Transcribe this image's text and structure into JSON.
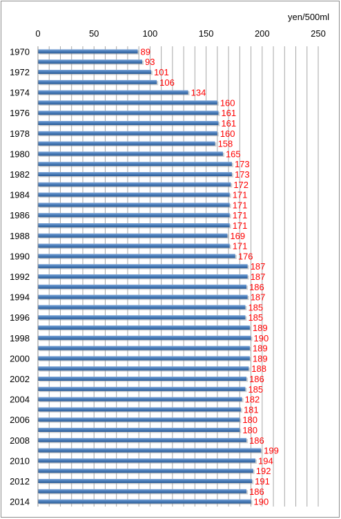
{
  "chart_data": {
    "type": "bar",
    "orientation": "horizontal",
    "unit_label": "yen/500ml",
    "xlim": [
      0,
      250
    ],
    "xticks": [
      "0",
      "50",
      "100",
      "150",
      "200",
      "250"
    ],
    "grid": true,
    "categories": [
      "1970",
      "1971",
      "1972",
      "1973",
      "1974",
      "1975",
      "1976",
      "1977",
      "1978",
      "1979",
      "1980",
      "1981",
      "1982",
      "1983",
      "1984",
      "1985",
      "1986",
      "1987",
      "1988",
      "1989",
      "1990",
      "1991",
      "1992",
      "1993",
      "1994",
      "1995",
      "1996",
      "1997",
      "1998",
      "1999",
      "2000",
      "2001",
      "2002",
      "2003",
      "2004",
      "2005",
      "2006",
      "2007",
      "2008",
      "2009",
      "2010",
      "2011",
      "2012",
      "2013",
      "2014"
    ],
    "category_labels_shown": [
      "1970",
      "1972",
      "1974",
      "1976",
      "1978",
      "1980",
      "1982",
      "1984",
      "1986",
      "1988",
      "1990",
      "1992",
      "1994",
      "1996",
      "1998",
      "2000",
      "2002",
      "2004",
      "2006",
      "2008",
      "2010",
      "2012",
      "2014"
    ],
    "values": [
      89,
      93,
      101,
      106,
      134,
      160,
      161,
      161,
      160,
      158,
      165,
      173,
      173,
      172,
      171,
      171,
      171,
      171,
      169,
      171,
      176,
      187,
      187,
      186,
      187,
      185,
      185,
      189,
      190,
      189,
      189,
      188,
      186,
      185,
      182,
      181,
      180,
      180,
      186,
      199,
      194,
      192,
      191,
      186,
      190
    ],
    "bar_color": "#4a7ebb",
    "label_color": "#ff0000"
  }
}
